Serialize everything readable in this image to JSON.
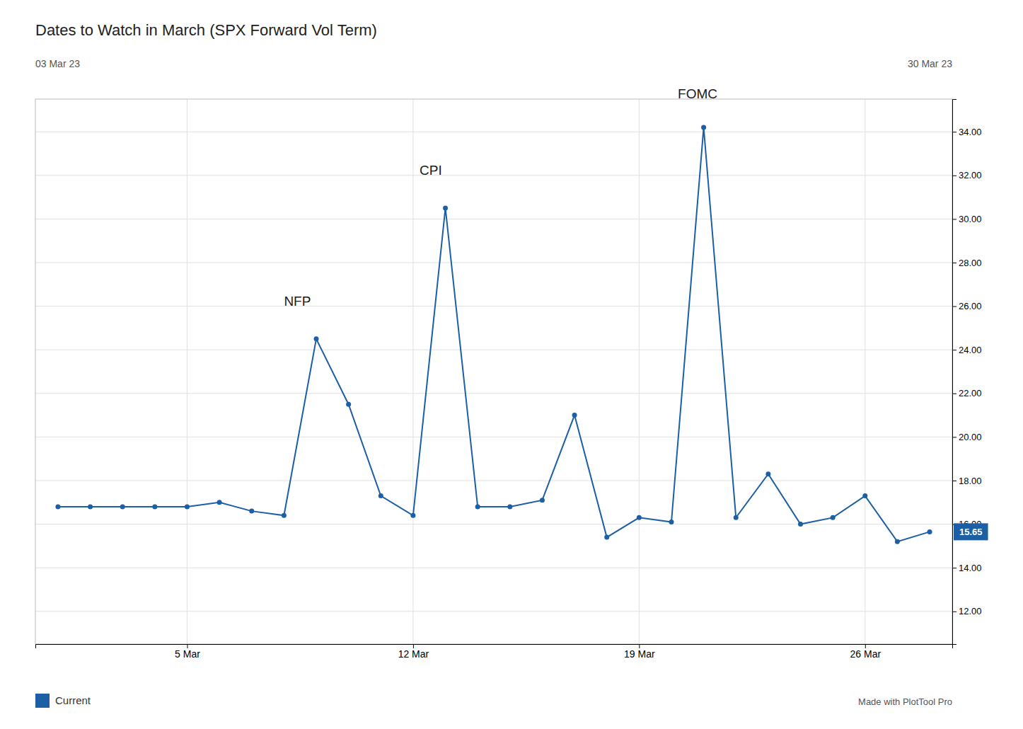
{
  "chart_data": {
    "type": "line",
    "title": "Dates to Watch in March (SPX Forward Vol Term)",
    "header": [
      "03 Mar 23",
      "30 Mar 23"
    ],
    "x": [
      1,
      2,
      3,
      4,
      5,
      6,
      7,
      8,
      9,
      10,
      11,
      12,
      13,
      14,
      15,
      16,
      17,
      18,
      19,
      20,
      21,
      22,
      23,
      24,
      25,
      26,
      27,
      28
    ],
    "series": [
      {
        "name": "Current",
        "color": "#1c5fa5",
        "marker": "circle",
        "values": [
          16.8,
          16.8,
          16.8,
          16.8,
          16.8,
          17.0,
          16.6,
          16.4,
          24.5,
          21.5,
          17.3,
          16.4,
          30.5,
          16.8,
          16.8,
          17.1,
          21.0,
          15.4,
          16.3,
          16.1,
          34.2,
          16.3,
          18.3,
          16.0,
          16.3,
          17.3,
          15.2,
          15.65
        ]
      }
    ],
    "xlim": [
      0.3,
      28.7
    ],
    "xticks": [
      {
        "value": 5,
        "label": "5 Mar"
      },
      {
        "value": 12,
        "label": "12 Mar"
      },
      {
        "value": 19,
        "label": "19 Mar"
      },
      {
        "value": 26,
        "label": "26 Mar"
      }
    ],
    "ylim": [
      10.5,
      35.5
    ],
    "yticks": [
      {
        "value": 12,
        "label": "12.00"
      },
      {
        "value": 14,
        "label": "14.00"
      },
      {
        "value": 16,
        "label": "16.00"
      },
      {
        "value": 18,
        "label": "18.00"
      },
      {
        "value": 20,
        "label": "20.00"
      },
      {
        "value": 22,
        "label": "22.00"
      },
      {
        "value": 24,
        "label": "24.00"
      },
      {
        "value": 26,
        "label": "26.00"
      },
      {
        "value": 28,
        "label": "28.00"
      },
      {
        "value": 30,
        "label": "30.00"
      },
      {
        "value": 32,
        "label": "32.00"
      },
      {
        "value": 34,
        "label": "34.00"
      }
    ],
    "grid": true,
    "legend": "lower left",
    "annotations": [
      {
        "text": "NFP",
        "x": 8.0,
        "y": 25.9
      },
      {
        "text": "CPI",
        "x": 12.2,
        "y": 31.9
      },
      {
        "text": "FOMC",
        "x": 20.2,
        "y": 35.4
      }
    ],
    "last_value": 15.65,
    "watermark": "Made with PlotTool Pro"
  }
}
